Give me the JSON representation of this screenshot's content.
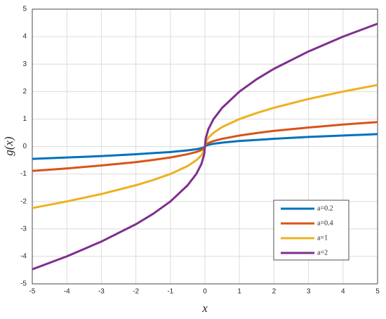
{
  "chart_data": {
    "type": "line",
    "x_label": "x",
    "y_label": "g(x)",
    "x": [
      -5,
      -4,
      -3,
      -2,
      -1.5,
      -1,
      -0.5,
      -0.25,
      -0.1,
      -0.02,
      0,
      0.02,
      0.1,
      0.25,
      0.5,
      1,
      1.5,
      2,
      3,
      4,
      5
    ],
    "series": [
      {
        "name": "a=0.2",
        "color": "#0072bd",
        "values": [
          -0.45,
          -0.4,
          -0.35,
          -0.28,
          -0.24,
          -0.2,
          -0.14,
          -0.1,
          -0.06,
          -0.03,
          0,
          0.03,
          0.06,
          0.1,
          0.14,
          0.2,
          0.24,
          0.28,
          0.35,
          0.4,
          0.45
        ]
      },
      {
        "name": "a=0.4",
        "color": "#d95319",
        "values": [
          -0.89,
          -0.8,
          -0.69,
          -0.57,
          -0.49,
          -0.4,
          -0.28,
          -0.2,
          -0.13,
          -0.06,
          0,
          0.06,
          0.13,
          0.2,
          0.28,
          0.4,
          0.49,
          0.57,
          0.69,
          0.8,
          0.89
        ]
      },
      {
        "name": "a=1",
        "color": "#edb120",
        "values": [
          -2.24,
          -2,
          -1.73,
          -1.41,
          -1.22,
          -1,
          -0.71,
          -0.5,
          -0.32,
          -0.14,
          0,
          0.14,
          0.32,
          0.5,
          0.71,
          1,
          1.22,
          1.41,
          1.73,
          2,
          2.24
        ]
      },
      {
        "name": "a=2",
        "color": "#7e2f8e",
        "values": [
          -4.47,
          -4,
          -3.46,
          -2.83,
          -2.45,
          -2,
          -1.41,
          -1,
          -0.63,
          -0.28,
          0,
          0.28,
          0.63,
          1,
          1.41,
          2,
          2.45,
          2.83,
          3.46,
          4,
          4.47
        ]
      }
    ],
    "xlim": [
      -5,
      5
    ],
    "xticks": [
      -5,
      -4,
      -3,
      -2,
      -1,
      0,
      1,
      2,
      3,
      4,
      5
    ],
    "ylim": [
      -5,
      5
    ],
    "yticks": [
      -5,
      -4,
      -3,
      -2,
      -1,
      0,
      1,
      2,
      3,
      4,
      5
    ],
    "grid": true,
    "legend": "lower right"
  }
}
